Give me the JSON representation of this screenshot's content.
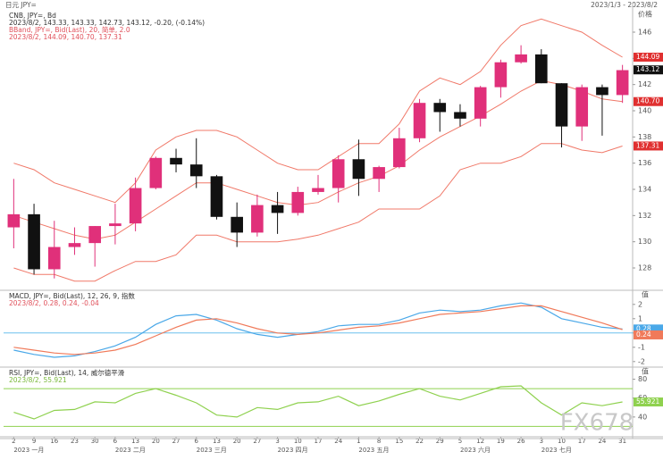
{
  "top_left": "日元 JPY=",
  "top_right": "2023/1/3 - 2023/8/2",
  "watermark": "FX678",
  "chart_data": [
    {
      "type": "candlestick",
      "axis_title": "价格",
      "headers": [
        {
          "text": "CNB, JPY=, Bd",
          "color": "#333333"
        },
        {
          "text": "2023/8/2, 143.33, 143.33, 142.73, 143.12, -0.20, (-0.14%)",
          "color": "#333333"
        },
        {
          "text": "BBand, JPY=, Bid(Last), 20, 简单, 2.0",
          "color": "#e0505a"
        },
        {
          "text": "2023/8/2, 144.09, 140.70, 137.31",
          "color": "#e0505a"
        }
      ],
      "categories": [
        "2",
        "9",
        "16",
        "23",
        "30",
        "6",
        "13",
        "20",
        "27",
        "6",
        "13",
        "20",
        "27",
        "3",
        "10",
        "17",
        "24",
        "1",
        "8",
        "15",
        "22",
        "29",
        "5",
        "12",
        "19",
        "26",
        "3",
        "10",
        "17",
        "24",
        "31"
      ],
      "month_labels": [
        "2023 一月",
        null,
        null,
        null,
        null,
        "2023 二月",
        null,
        null,
        null,
        "2023 三月",
        null,
        null,
        null,
        "2023 四月",
        null,
        null,
        null,
        "2023 五月",
        null,
        null,
        null,
        null,
        "2023 六月",
        null,
        null,
        null,
        "2023 七月",
        null,
        null,
        null,
        null
      ],
      "open": [
        131.1,
        132.1,
        127.9,
        129.6,
        129.9,
        131.2,
        131.4,
        134.1,
        136.4,
        135.9,
        135.0,
        131.9,
        130.7,
        132.8,
        132.2,
        133.8,
        134.1,
        136.3,
        134.8,
        135.7,
        137.9,
        140.6,
        139.9,
        139.4,
        141.8,
        143.7,
        144.3,
        142.1,
        138.8,
        141.8,
        141.2
      ],
      "high": [
        134.8,
        132.9,
        131.6,
        131.1,
        131.2,
        132.9,
        134.9,
        136.5,
        137.1,
        137.9,
        135.1,
        133.0,
        133.6,
        133.8,
        134.2,
        135.1,
        136.6,
        137.8,
        135.8,
        138.7,
        140.9,
        140.9,
        140.5,
        141.9,
        143.9,
        145.0,
        144.7,
        142.1,
        142.0,
        142.0,
        143.5
      ],
      "low": [
        129.5,
        127.5,
        127.2,
        129.0,
        128.1,
        129.8,
        130.8,
        134.0,
        135.3,
        134.1,
        131.7,
        129.6,
        130.4,
        130.6,
        132.0,
        133.6,
        133.0,
        133.5,
        133.8,
        135.6,
        137.6,
        138.4,
        138.8,
        138.8,
        141.0,
        143.6,
        142.1,
        137.2,
        137.7,
        138.1,
        140.6
      ],
      "close": [
        132.1,
        127.9,
        129.6,
        129.9,
        131.2,
        131.4,
        134.1,
        136.4,
        135.9,
        135.0,
        131.9,
        130.7,
        132.8,
        132.2,
        133.8,
        134.1,
        136.3,
        134.8,
        135.7,
        137.9,
        140.6,
        139.9,
        139.4,
        141.8,
        143.7,
        144.3,
        142.1,
        138.8,
        141.8,
        141.2,
        143.1
      ],
      "up_color": "#e0307a",
      "down_color": "#111111",
      "series": [
        {
          "color": "#f07868",
          "values": [
            136,
            135.5,
            134.5,
            134,
            133.5,
            133,
            134.5,
            137,
            138,
            138.5,
            138.5,
            138,
            137,
            136,
            135.5,
            135.5,
            136.5,
            137.5,
            137.5,
            139,
            141.5,
            142.5,
            142,
            143,
            145,
            146.5,
            147,
            146.5,
            146,
            145,
            144.09
          ]
        },
        {
          "color": "#f07868",
          "values": [
            132,
            131.5,
            131,
            130.5,
            130.2,
            130.5,
            131.5,
            132.5,
            133.5,
            134.5,
            134.5,
            134,
            133.5,
            133,
            132.8,
            133,
            133.8,
            134.5,
            135,
            135.8,
            137,
            138,
            138.8,
            139.6,
            140.5,
            141.5,
            142.3,
            142,
            141.5,
            140.9,
            140.7
          ]
        },
        {
          "color": "#f07868",
          "values": [
            128,
            127.5,
            127.5,
            127,
            127,
            127.8,
            128.5,
            128.5,
            129,
            130.5,
            130.5,
            130,
            130,
            130,
            130.2,
            130.5,
            131,
            131.5,
            132.5,
            132.5,
            132.5,
            133.5,
            135.5,
            136,
            136,
            136.5,
            137.5,
            137.5,
            137,
            136.8,
            137.31
          ]
        }
      ],
      "price_tags": [
        {
          "value": 144.09,
          "label": "144.09",
          "color": "#e03030"
        },
        {
          "value": 143.12,
          "label": "143.12",
          "color": "#111111"
        },
        {
          "value": 140.7,
          "label": "140.70",
          "color": "#e03030"
        },
        {
          "value": 137.31,
          "label": "137.31",
          "color": "#e03030"
        }
      ],
      "ylim": [
        126.5,
        147.5
      ],
      "yticks": [
        128,
        130,
        132,
        134,
        136,
        138,
        140,
        142,
        144,
        146
      ]
    },
    {
      "type": "line",
      "axis_title": "值",
      "headers": [
        {
          "text": "MACD, JPY=, Bid(Last), 12, 26, 9, 指数",
          "color": "#333333"
        },
        {
          "text": "2023/8/2, 0.28, 0.24, -0.04",
          "color": "#e0505a"
        }
      ],
      "series": [
        {
          "color": "#4aa8e8",
          "values": [
            -1.2,
            -1.5,
            -1.7,
            -1.6,
            -1.3,
            -0.9,
            -0.3,
            0.6,
            1.2,
            1.3,
            0.9,
            0.3,
            -0.1,
            -0.3,
            -0.1,
            0.1,
            0.5,
            0.6,
            0.6,
            0.9,
            1.4,
            1.6,
            1.5,
            1.6,
            1.9,
            2.1,
            1.8,
            1.0,
            0.7,
            0.4,
            0.28
          ],
          "tag": "0.28"
        },
        {
          "color": "#f07a5a",
          "values": [
            -1.0,
            -1.2,
            -1.4,
            -1.5,
            -1.4,
            -1.2,
            -0.8,
            -0.2,
            0.4,
            0.9,
            1.0,
            0.7,
            0.3,
            0.0,
            -0.1,
            0.0,
            0.2,
            0.4,
            0.5,
            0.7,
            1.0,
            1.3,
            1.4,
            1.5,
            1.7,
            1.9,
            1.9,
            1.5,
            1.1,
            0.7,
            0.24
          ],
          "tag": "0.24"
        }
      ],
      "levels": [
        0
      ],
      "level_color": "#6cc0ee",
      "ylim": [
        -2.2,
        2.8
      ],
      "yticks": [
        -2,
        -1,
        0,
        1,
        2
      ]
    },
    {
      "type": "line",
      "axis_title": "值",
      "headers": [
        {
          "text": "RSI, JPY=, Bid(Last), 14, 威尔德平滑",
          "color": "#333333"
        },
        {
          "text": "2023/8/2, 55.921",
          "color": "#7ab83a"
        }
      ],
      "series": [
        {
          "color": "#8fd14f",
          "values": [
            45,
            38,
            47,
            48,
            56,
            55,
            65,
            70,
            63,
            55,
            42,
            40,
            50,
            48,
            55,
            56,
            62,
            52,
            57,
            64,
            70,
            62,
            58,
            65,
            72,
            73,
            55,
            42,
            55,
            52,
            55.921
          ],
          "tag": "55.921"
        }
      ],
      "levels": [
        30,
        70
      ],
      "level_color": "#8fd14f",
      "ylim": [
        20,
        90
      ],
      "yticks": [
        40,
        60,
        80
      ]
    }
  ]
}
